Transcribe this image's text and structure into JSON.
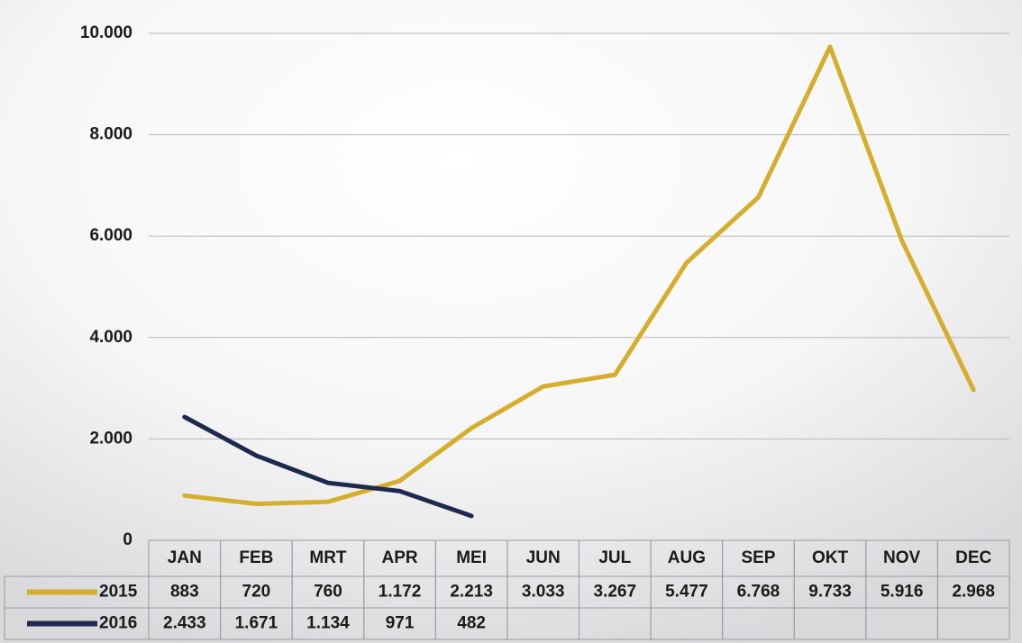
{
  "chart_data": {
    "type": "line",
    "categories": [
      "JAN",
      "FEB",
      "MRT",
      "APR",
      "MEI",
      "JUN",
      "JUL",
      "AUG",
      "SEP",
      "OKT",
      "NOV",
      "DEC"
    ],
    "series": [
      {
        "name": "2015",
        "color": "#d4ae2c",
        "values": [
          883,
          720,
          760,
          1172,
          2213,
          3033,
          3267,
          5477,
          6768,
          9733,
          5916,
          2968
        ],
        "value_labels": [
          "883",
          "720",
          "760",
          "1.172",
          "2.213",
          "3.033",
          "3.267",
          "5.477",
          "6.768",
          "9.733",
          "5.916",
          "2.968"
        ]
      },
      {
        "name": "2016",
        "color": "#1d2a4e",
        "values": [
          2433,
          1671,
          1134,
          971,
          482,
          null,
          null,
          null,
          null,
          null,
          null,
          null
        ],
        "value_labels": [
          "2.433",
          "1.671",
          "1.134",
          "971",
          "482",
          null,
          null,
          null,
          null,
          null,
          null,
          null
        ]
      }
    ],
    "ylim": [
      0,
      10000
    ],
    "yticks": [
      0,
      {
        "value": 2000,
        "label": "2.000"
      },
      {
        "value": 4000,
        "label": "4.000"
      },
      {
        "value": 6000,
        "label": "6.000"
      },
      {
        "value": 8000,
        "label": "8.000"
      },
      {
        "value": 10000,
        "label": "10.000"
      }
    ],
    "grid": true
  }
}
